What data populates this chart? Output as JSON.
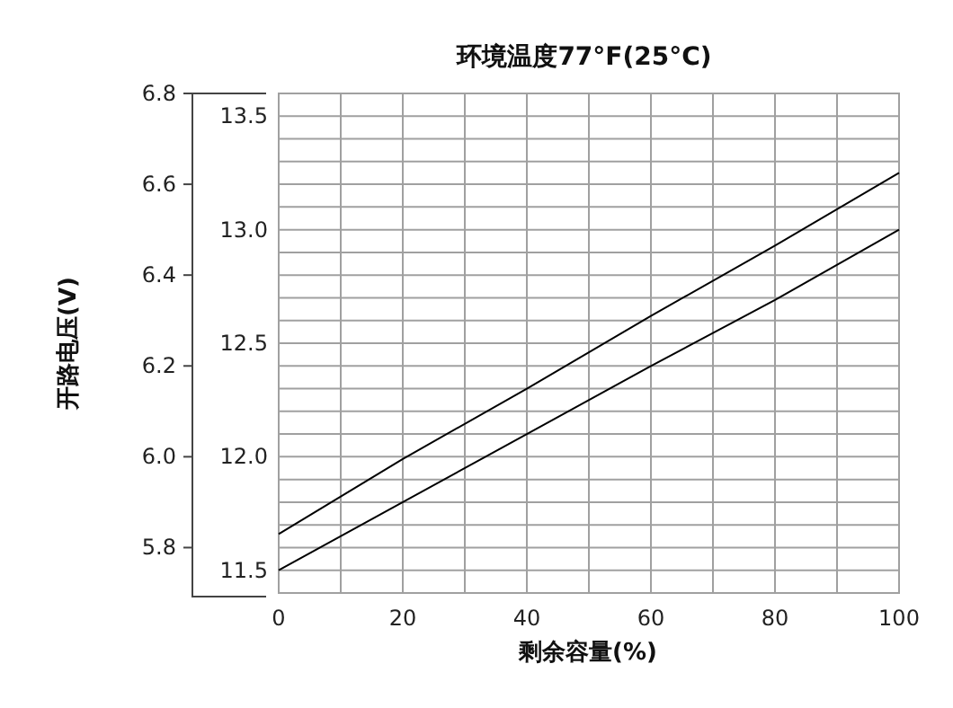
{
  "chart_data": {
    "type": "line",
    "title": "环境温度77°F(25°C)",
    "xlabel": "剩余容量(%)",
    "ylabel": "开路电压(V)",
    "x": [
      0,
      20,
      40,
      60,
      80,
      100
    ],
    "xlim": [
      0,
      100
    ],
    "xticks": [
      0,
      {
        "value": 10,
        "label": null
      },
      20,
      {
        "value": 30,
        "label": null
      },
      40,
      {
        "value": 50,
        "label": null
      },
      60,
      {
        "value": 70,
        "label": null
      },
      80,
      {
        "value": 90,
        "label": null
      },
      100
    ],
    "ylim": [
      5.7,
      6.8
    ],
    "yticks": [
      5.8,
      {
        "value": 6,
        "label": "6.0"
      },
      6.2,
      6.4,
      6.6,
      6.8
    ],
    "y2lim": [
      11.4,
      13.6
    ],
    "y2ticks": [
      11.5,
      {
        "value": 11.6,
        "label": null
      },
      {
        "value": 11.7,
        "label": null
      },
      {
        "value": 11.8,
        "label": null
      },
      {
        "value": 11.9,
        "label": null
      },
      {
        "value": 12,
        "label": "12.0"
      },
      {
        "value": 12.1,
        "label": null
      },
      {
        "value": 12.2,
        "label": null
      },
      {
        "value": 12.3,
        "label": null
      },
      {
        "value": 12.4,
        "label": null
      },
      12.5,
      {
        "value": 12.6,
        "label": null
      },
      {
        "value": 12.7,
        "label": null
      },
      {
        "value": 12.8,
        "label": null
      },
      {
        "value": 12.9,
        "label": null
      },
      {
        "value": 13,
        "label": "13.0"
      },
      {
        "value": 13.1,
        "label": null
      },
      {
        "value": 13.2,
        "label": null
      },
      {
        "value": 13.3,
        "label": null
      },
      {
        "value": 13.4,
        "label": null
      },
      13.5
    ],
    "series": [
      {
        "axis": "y2",
        "color": "#000000",
        "values": [
          11.66,
          11.99,
          12.3,
          12.62,
          12.93,
          13.25
        ]
      },
      {
        "axis": "y2",
        "color": "#000000",
        "values": [
          11.5,
          11.8,
          12.1,
          12.4,
          12.69,
          13.0
        ]
      }
    ],
    "grid": true
  }
}
